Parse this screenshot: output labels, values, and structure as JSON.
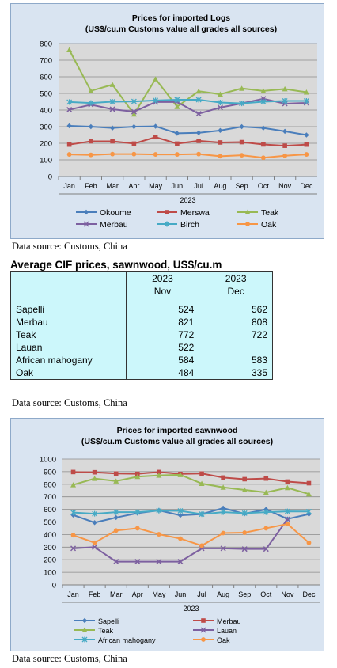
{
  "source_text": "Data source: Customs, China",
  "table": {
    "heading": "Average CIF prices, sawnwood, US$/cu.m",
    "col_years": [
      "2023",
      "2023"
    ],
    "col_months": [
      "Nov",
      "Dec"
    ],
    "rows": [
      {
        "name": "Sapelli",
        "nov": "524",
        "dec": "562"
      },
      {
        "name": "Merbau",
        "nov": "821",
        "dec": "808"
      },
      {
        "name": "Teak",
        "nov": "772",
        "dec": "722"
      },
      {
        "name": "Lauan",
        "nov": "522",
        "dec": ""
      },
      {
        "name": "African mahogany",
        "nov": "584",
        "dec": "583"
      },
      {
        "name": "Oak",
        "nov": "484",
        "dec": "335"
      }
    ]
  },
  "chart_data": [
    {
      "type": "line",
      "title": "Prices for imported Logs",
      "subtitle": "(US$/cu.m Customs value all grades all sources)",
      "categories": [
        "Jan",
        "Feb",
        "Mar",
        "Apr",
        "May",
        "Jun",
        "Jul",
        "Aug",
        "Sep",
        "Oct",
        "Nov",
        "Dec"
      ],
      "xlabel": "2023",
      "ylim": [
        0,
        800
      ],
      "yticks": [
        0,
        100,
        200,
        300,
        400,
        500,
        600,
        700,
        800
      ],
      "grid": true,
      "legend": "bottom",
      "series": [
        {
          "name": "Okoume",
          "color": "#4a7ebb",
          "marker": "diamond",
          "values": [
            305,
            300,
            292,
            300,
            302,
            260,
            263,
            277,
            300,
            292,
            272,
            250
          ]
        },
        {
          "name": "Merswa",
          "color": "#be4b48",
          "marker": "square",
          "values": [
            192,
            212,
            212,
            198,
            237,
            198,
            215,
            205,
            207,
            193,
            185,
            192
          ]
        },
        {
          "name": "Teak",
          "color": "#98b954",
          "marker": "triangle",
          "values": [
            762,
            515,
            553,
            375,
            587,
            420,
            513,
            495,
            530,
            515,
            527,
            507
          ]
        },
        {
          "name": "Merbau",
          "color": "#7d60a0",
          "marker": "x",
          "values": [
            402,
            432,
            405,
            390,
            448,
            448,
            378,
            415,
            440,
            468,
            438,
            443
          ]
        },
        {
          "name": "Birch",
          "color": "#46aac5",
          "marker": "star",
          "values": [
            448,
            442,
            450,
            452,
            458,
            462,
            462,
            445,
            440,
            450,
            455,
            455
          ]
        },
        {
          "name": "Oak",
          "color": "#f79646",
          "marker": "circle",
          "values": [
            133,
            130,
            135,
            135,
            133,
            133,
            135,
            122,
            128,
            113,
            125,
            133
          ]
        }
      ]
    },
    {
      "type": "line",
      "title": "Prices for imported sawnwood",
      "subtitle": "(US$/cu.m Customs value all grades all sources)",
      "categories": [
        "Jan",
        "Feb",
        "Mar",
        "Apr",
        "May",
        "Jun",
        "Jul",
        "Aug",
        "Sep",
        "Oct",
        "Nov",
        "Dec"
      ],
      "xlabel": "2023",
      "ylim": [
        0,
        1000
      ],
      "yticks": [
        0,
        100,
        200,
        300,
        400,
        500,
        600,
        700,
        800,
        900,
        1000
      ],
      "grid": true,
      "legend": "bottom",
      "series": [
        {
          "name": "Sapelli",
          "color": "#4a7ebb",
          "marker": "diamond",
          "values": [
            555,
            495,
            535,
            570,
            592,
            553,
            562,
            610,
            565,
            600,
            524,
            562
          ]
        },
        {
          "name": "Merbau",
          "color": "#be4b48",
          "marker": "square",
          "values": [
            897,
            895,
            885,
            883,
            897,
            882,
            885,
            853,
            840,
            845,
            821,
            808
          ]
        },
        {
          "name": "Teak",
          "color": "#98b954",
          "marker": "triangle",
          "values": [
            795,
            845,
            825,
            860,
            870,
            875,
            805,
            775,
            755,
            735,
            772,
            722
          ]
        },
        {
          "name": "Lauan",
          "color": "#7d60a0",
          "marker": "x",
          "values": [
            290,
            300,
            185,
            185,
            185,
            185,
            290,
            290,
            285,
            285,
            522,
            null
          ]
        },
        {
          "name": "African mahogany",
          "color": "#46aac5",
          "marker": "star",
          "values": [
            575,
            565,
            578,
            578,
            590,
            588,
            562,
            578,
            570,
            578,
            584,
            583
          ]
        },
        {
          "name": "Oak",
          "color": "#f79646",
          "marker": "circle",
          "values": [
            395,
            335,
            432,
            450,
            402,
            368,
            312,
            412,
            415,
            450,
            484,
            335
          ]
        }
      ]
    }
  ]
}
